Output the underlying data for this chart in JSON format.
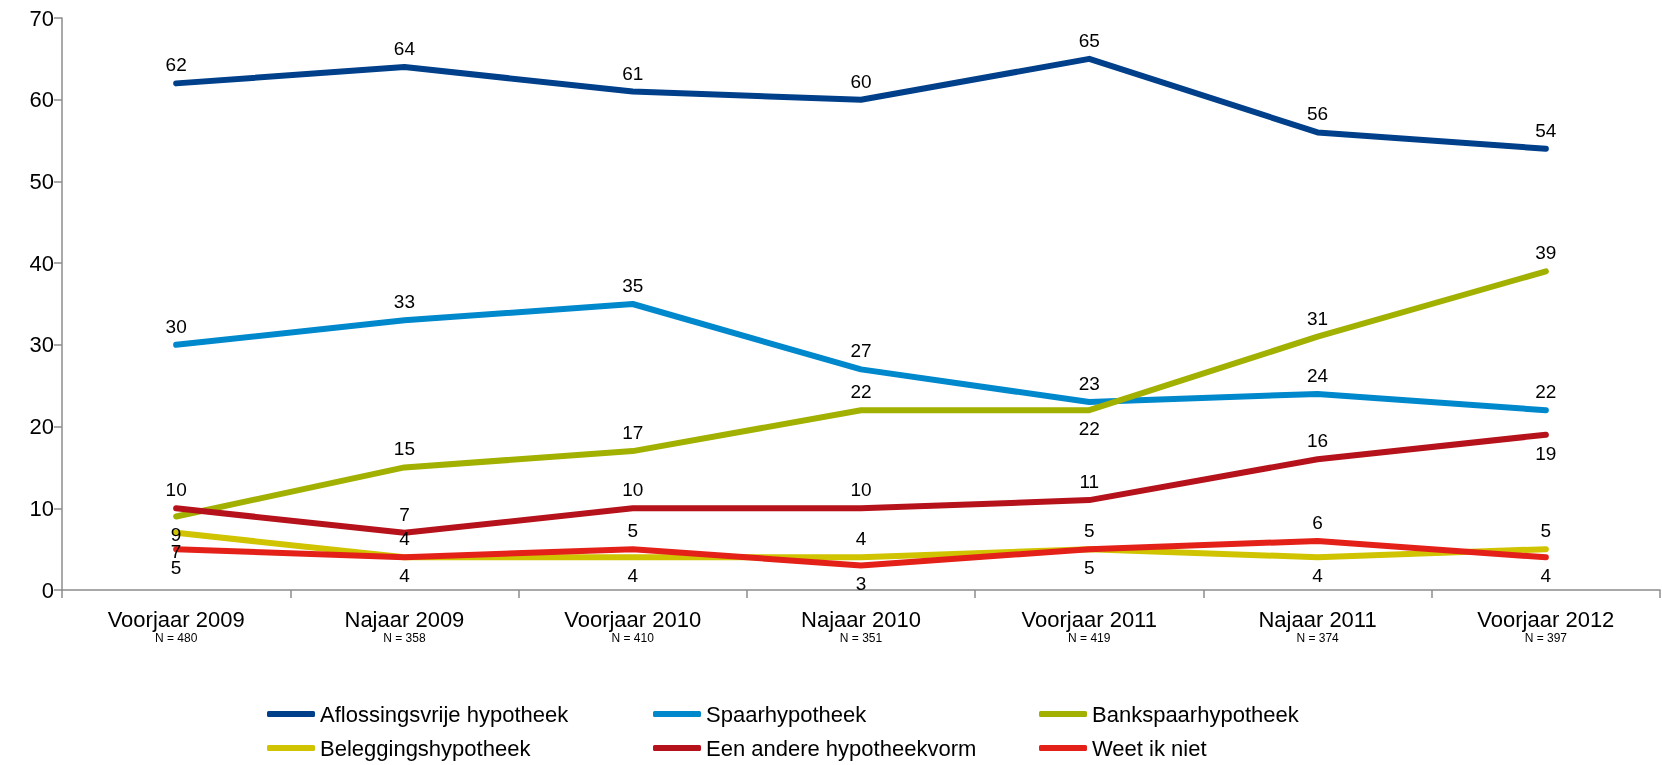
{
  "chart_data": {
    "type": "line",
    "categories": [
      "Voorjaar 2009\nN = 480",
      "Najaar 2009\nN = 358",
      "Voorjaar 2010\nN = 410",
      "Najaar 2010\nN = 351",
      "Voorjaar 2011\nN = 419",
      "Najaar 2011\nN = 374",
      "Voorjaar 2012\nN = 397"
    ],
    "series": [
      {
        "name": "Aflossingsvrije hypotheek",
        "color": "#003f8a",
        "values": [
          62,
          64,
          61,
          60,
          65,
          56,
          54
        ]
      },
      {
        "name": "Spaarhypotheek",
        "color": "#0088cc",
        "values": [
          30,
          33,
          35,
          27,
          23,
          24,
          22
        ]
      },
      {
        "name": "Bankspaarhypotheek",
        "color": "#a2b000",
        "values": [
          9,
          15,
          17,
          22,
          22,
          31,
          39
        ]
      },
      {
        "name": "Beleggingshypotheek",
        "color": "#d0c400",
        "values": [
          7,
          4,
          4,
          4,
          5,
          4,
          5
        ]
      },
      {
        "name": "Een andere hypotheekvorm",
        "color": "#b5121b",
        "values": [
          10,
          7,
          10,
          10,
          11,
          16,
          19
        ]
      },
      {
        "name": "Weet ik niet",
        "color": "#e42118",
        "values": [
          5,
          4,
          5,
          3,
          5,
          6,
          4
        ]
      }
    ],
    "ylim": [
      0,
      70
    ],
    "yticks": [
      0,
      10,
      20,
      30,
      40,
      50,
      60,
      70
    ],
    "legend": "bottom",
    "data_labels": true,
    "marker": "none",
    "line_style": "solid"
  }
}
